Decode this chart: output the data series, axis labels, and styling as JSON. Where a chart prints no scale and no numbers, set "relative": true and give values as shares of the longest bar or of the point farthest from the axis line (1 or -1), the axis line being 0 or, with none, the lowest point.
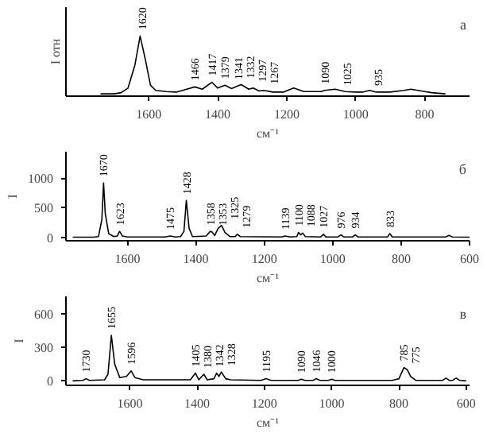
{
  "chart_data": [
    {
      "type": "line",
      "relative": true,
      "ylabel": "I отн",
      "xlabel": "см⁻¹",
      "xlim": [
        1840,
        670
      ],
      "xticks": [
        1600,
        1400,
        1200,
        1000,
        800
      ],
      "grid": false,
      "marker": "none",
      "line_style": "solid",
      "x": [
        1740,
        1700,
        1680,
        1660,
        1640,
        1625,
        1610,
        1595,
        1580,
        1550,
        1520,
        1490,
        1466,
        1445,
        1417,
        1400,
        1379,
        1360,
        1341,
        1332,
        1310,
        1297,
        1280,
        1267,
        1240,
        1210,
        1180,
        1150,
        1100,
        1090,
        1060,
        1030,
        1000,
        980,
        960,
        940,
        900,
        860,
        840,
        820,
        800,
        780,
        760,
        740
      ],
      "series": [
        {
          "color": "#000000",
          "values": [
            0,
            0,
            0.02,
            0.1,
            0.5,
            1.0,
            0.6,
            0.15,
            0.06,
            0.04,
            0.03,
            0.08,
            0.12,
            0.08,
            0.2,
            0.1,
            0.15,
            0.09,
            0.14,
            0.16,
            0.08,
            0.1,
            0.05,
            0.06,
            0.03,
            0.03,
            0.1,
            0.04,
            0.04,
            0.06,
            0.08,
            0.04,
            0.03,
            0.03,
            0.06,
            0.03,
            0.03,
            0.06,
            0.08,
            0.06,
            0.04,
            0.02,
            0.01,
            0
          ]
        }
      ],
      "annotations": [
        "а",
        {
          "text": "1620",
          "x": 1620,
          "y": 1.0
        },
        {
          "text": "1466",
          "x": 1466,
          "y": 0.12
        },
        {
          "text": "1417",
          "x": 1417,
          "y": 0.2
        },
        {
          "text": "1379",
          "x": 1379,
          "y": 0.15
        },
        {
          "text": "1341",
          "x": 1341,
          "y": 0.14
        },
        {
          "text": "1332",
          "x": 1332,
          "y": 0.16
        },
        {
          "text": "1297",
          "x": 1297,
          "y": 0.1
        },
        {
          "text": "1267",
          "x": 1267,
          "y": 0.06
        },
        {
          "text": "1090",
          "x": 1090,
          "y": 0.06
        },
        {
          "text": "1025",
          "x": 1025,
          "y": 0.04
        },
        {
          "text": "935",
          "x": 935,
          "y": 0.03
        }
      ]
    },
    {
      "type": "line",
      "ylabel": "I",
      "xlabel": "см⁻¹",
      "xlim": [
        1780,
        600
      ],
      "xticks": [
        1600,
        1400,
        1200,
        1000,
        800,
        600
      ],
      "ylim": [
        -60,
        1450
      ],
      "yticks": [
        0,
        500,
        1000
      ],
      "grid": false,
      "marker": "none",
      "line_style": "solid",
      "x": [
        1760,
        1700,
        1685,
        1675,
        1670,
        1665,
        1655,
        1640,
        1630,
        1623,
        1615,
        1600,
        1490,
        1475,
        1460,
        1445,
        1435,
        1428,
        1420,
        1410,
        1370,
        1358,
        1353,
        1345,
        1335,
        1325,
        1315,
        1300,
        1285,
        1279,
        1270,
        1150,
        1139,
        1125,
        1105,
        1100,
        1094,
        1088,
        1080,
        1035,
        1027,
        1020,
        985,
        976,
        968,
        942,
        934,
        926,
        840,
        833,
        826,
        670,
        660,
        650,
        600
      ],
      "series": [
        {
          "color": "#000000",
          "values": [
            0,
            0,
            10,
            300,
            920,
            400,
            60,
            10,
            20,
            100,
            20,
            5,
            5,
            20,
            5,
            10,
            100,
            625,
            150,
            10,
            20,
            100,
            90,
            30,
            150,
            200,
            80,
            10,
            10,
            50,
            10,
            5,
            20,
            5,
            10,
            80,
            40,
            70,
            10,
            5,
            50,
            5,
            5,
            40,
            5,
            5,
            40,
            5,
            5,
            60,
            5,
            5,
            30,
            5,
            0
          ]
        }
      ],
      "annotations": [
        "б",
        {
          "text": "1670",
          "x": 1670,
          "y": 920
        },
        {
          "text": "1623",
          "x": 1623,
          "y": 100
        },
        {
          "text": "1475",
          "x": 1475,
          "y": 20
        },
        {
          "text": "1428",
          "x": 1428,
          "y": 625
        },
        {
          "text": "1358",
          "x": 1358,
          "y": 100
        },
        {
          "text": "1353",
          "x": 1353,
          "y": 90
        },
        {
          "text": "1325",
          "x": 1325,
          "y": 200
        },
        {
          "text": "1279",
          "x": 1279,
          "y": 50
        },
        {
          "text": "1139",
          "x": 1139,
          "y": 20
        },
        {
          "text": "1100",
          "x": 1100,
          "y": 80
        },
        {
          "text": "1088",
          "x": 1088,
          "y": 70
        },
        {
          "text": "1027",
          "x": 1027,
          "y": 50
        },
        {
          "text": "976",
          "x": 976,
          "y": 40
        },
        {
          "text": "934",
          "x": 934,
          "y": 40
        },
        {
          "text": "833",
          "x": 833,
          "y": 60
        }
      ]
    },
    {
      "type": "line",
      "ylabel": "I",
      "xlabel": "см⁻¹",
      "xlim": [
        1790,
        590
      ],
      "xticks": [
        1600,
        1400,
        1200,
        1000,
        800,
        600
      ],
      "ylim": [
        -40,
        760
      ],
      "yticks": [
        0,
        300,
        600
      ],
      "grid": false,
      "marker": "none",
      "line_style": "solid",
      "x": [
        1770,
        1740,
        1730,
        1720,
        1675,
        1665,
        1655,
        1645,
        1630,
        1610,
        1596,
        1585,
        1560,
        1420,
        1405,
        1395,
        1380,
        1370,
        1350,
        1342,
        1335,
        1328,
        1315,
        1300,
        1210,
        1195,
        1180,
        1100,
        1090,
        1080,
        1055,
        1046,
        1035,
        1010,
        1000,
        990,
        820,
        800,
        785,
        780,
        775,
        765,
        750,
        670,
        660,
        650,
        640,
        630,
        620,
        600
      ],
      "series": [
        {
          "color": "#000000",
          "values": [
            0,
            5,
            20,
            5,
            10,
            60,
            410,
            150,
            30,
            40,
            90,
            30,
            10,
            10,
            70,
            10,
            60,
            10,
            20,
            70,
            40,
            80,
            20,
            10,
            5,
            20,
            5,
            5,
            15,
            5,
            5,
            20,
            5,
            5,
            15,
            5,
            5,
            20,
            120,
            110,
            100,
            40,
            5,
            5,
            25,
            5,
            5,
            25,
            5,
            0
          ]
        }
      ],
      "annotations": [
        "в",
        {
          "text": "1730",
          "x": 1730,
          "y": 20
        },
        {
          "text": "1655",
          "x": 1655,
          "y": 410
        },
        {
          "text": "1596",
          "x": 1596,
          "y": 90
        },
        {
          "text": "1405",
          "x": 1405,
          "y": 70
        },
        {
          "text": "1380",
          "x": 1380,
          "y": 60
        },
        {
          "text": "1342",
          "x": 1342,
          "y": 70
        },
        {
          "text": "1328",
          "x": 1328,
          "y": 80
        },
        {
          "text": "1195",
          "x": 1195,
          "y": 20
        },
        {
          "text": "1090",
          "x": 1090,
          "y": 15
        },
        {
          "text": "1046",
          "x": 1046,
          "y": 20
        },
        {
          "text": "1000",
          "x": 1000,
          "y": 15
        },
        {
          "text": "785",
          "x": 785,
          "y": 120
        },
        {
          "text": "775",
          "x": 775,
          "y": 100
        }
      ]
    }
  ]
}
